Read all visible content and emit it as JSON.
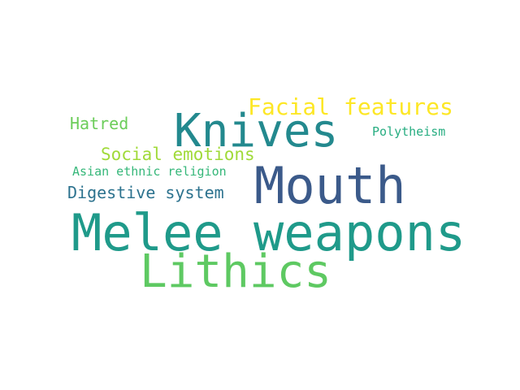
{
  "palette": {
    "background": "#ffffff",
    "dark_blue": "#3b5a8a",
    "teal": "#1f9a8a",
    "teal_dark": "#2b7f8e",
    "green": "#5ec962",
    "light_green": "#8fd55a",
    "yellow": "#fde725",
    "lime": "#b5de2b"
  },
  "words": {
    "melee_weapons": "Melee weapons",
    "mouth": "Mouth",
    "knives": "Knives",
    "lithics": "Lithics",
    "facial_features": "Facial features",
    "social_emotions": "Social emotions",
    "digestive_system": "Digestive system",
    "hatred": "Hatred",
    "polytheism": "Polytheism",
    "asian_ethnic_religion": "Asian ethnic religion"
  }
}
